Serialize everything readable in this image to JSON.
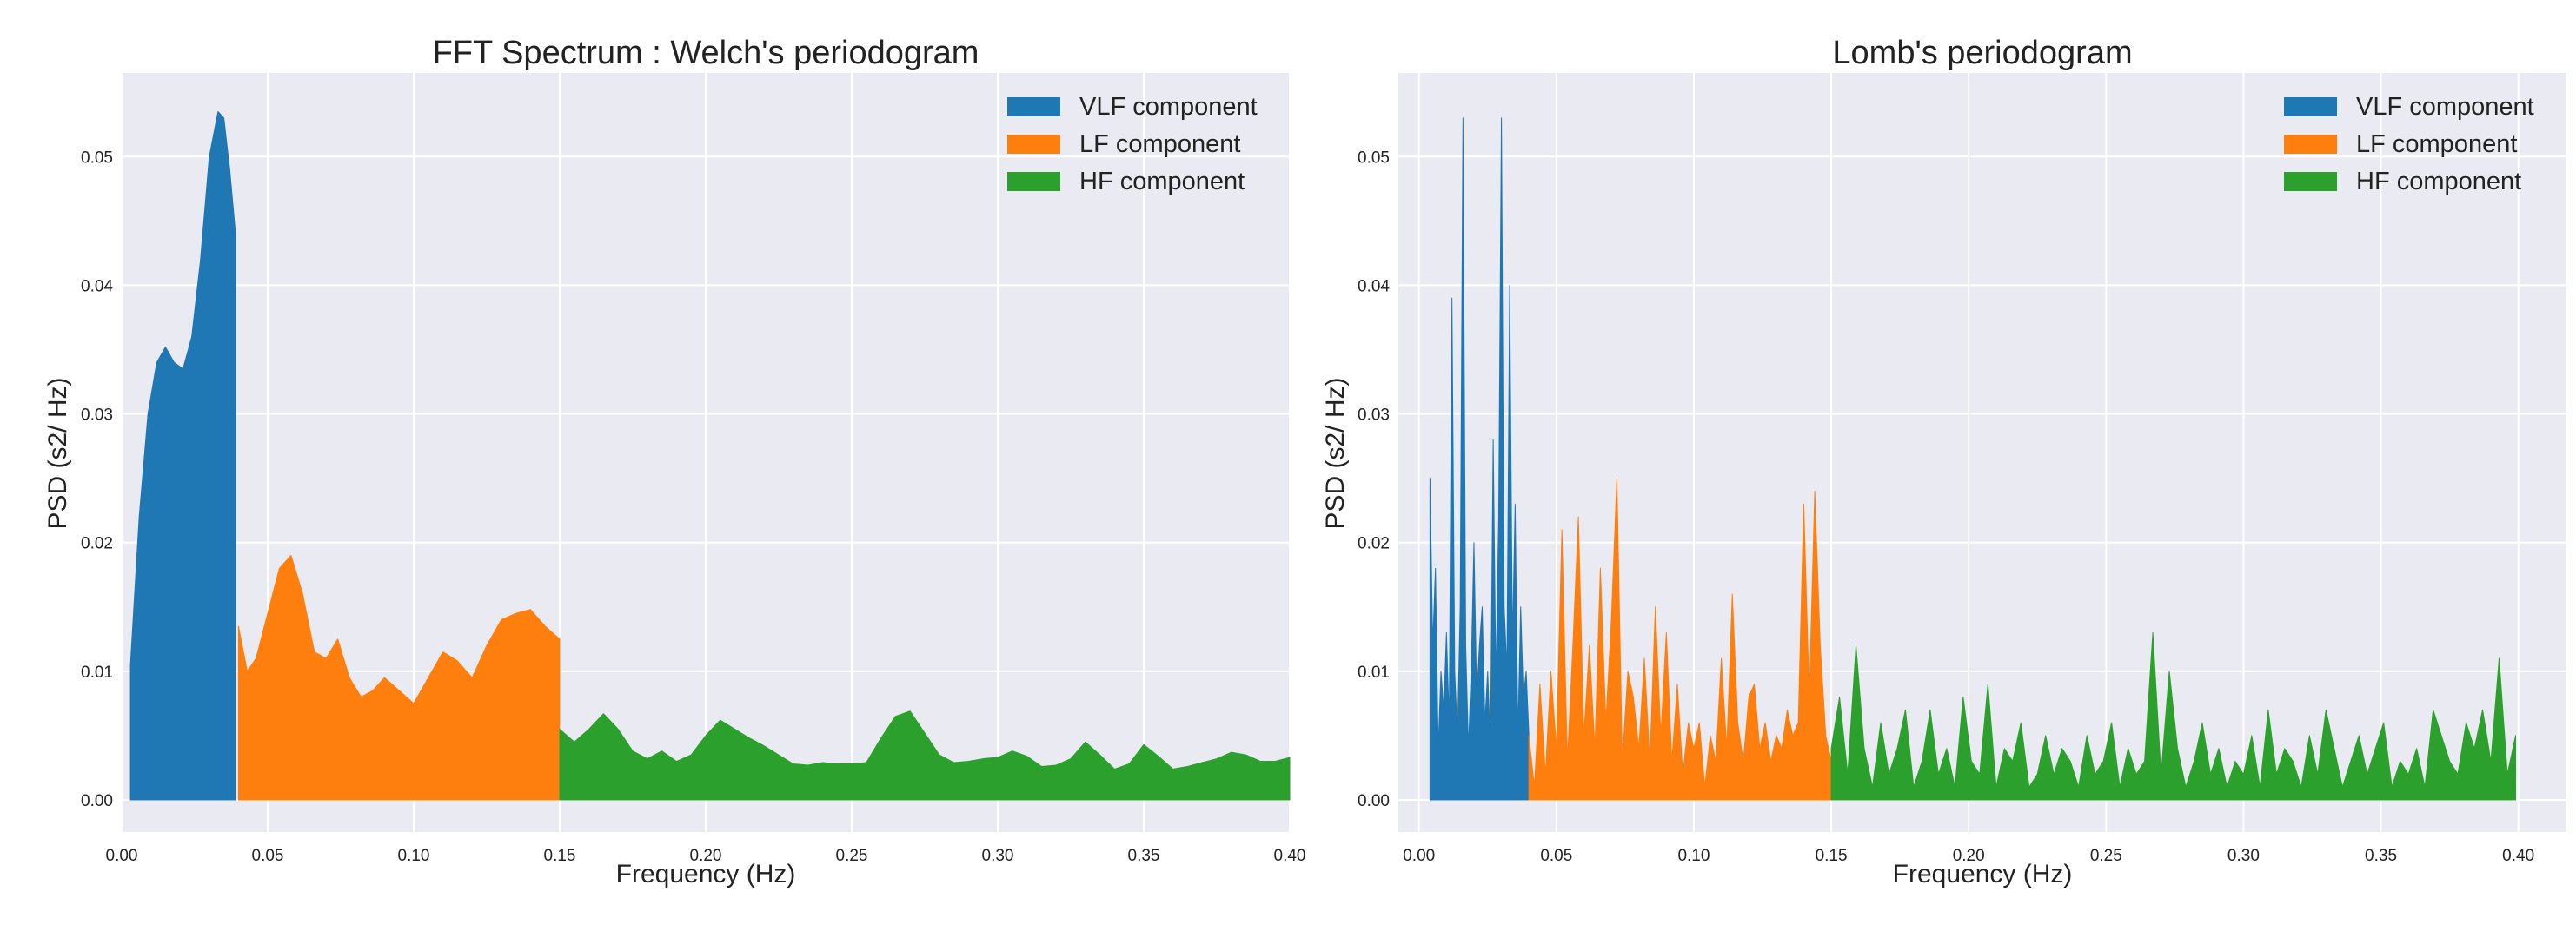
{
  "chart_data": [
    {
      "type": "area",
      "title": "FFT Spectrum : Welch's periodogram",
      "xlabel": "Frequency (Hz)",
      "ylabel": "PSD (s2/ Hz)",
      "xlim": [
        0.0,
        0.4
      ],
      "ylim": [
        -0.0025,
        0.0565
      ],
      "xticks": [
        "0.00",
        "0.05",
        "0.10",
        "0.15",
        "0.20",
        "0.25",
        "0.30",
        "0.35",
        "0.40"
      ],
      "yticks": [
        "0.00",
        "0.01",
        "0.02",
        "0.03",
        "0.04",
        "0.05"
      ],
      "grid": true,
      "legend_position": "top-right",
      "series": [
        {
          "name": "VLF component",
          "color": "#1f77b4",
          "x": [
            0.003,
            0.006,
            0.009,
            0.012,
            0.015,
            0.018,
            0.021,
            0.024,
            0.027,
            0.03,
            0.033,
            0.035,
            0.037,
            0.039
          ],
          "y": [
            0.0105,
            0.022,
            0.03,
            0.034,
            0.0352,
            0.034,
            0.0335,
            0.036,
            0.042,
            0.05,
            0.0535,
            0.053,
            0.049,
            0.044
          ]
        },
        {
          "name": "LF component",
          "color": "#ff7f0e",
          "x": [
            0.04,
            0.043,
            0.046,
            0.05,
            0.054,
            0.058,
            0.062,
            0.066,
            0.07,
            0.074,
            0.078,
            0.082,
            0.086,
            0.09,
            0.095,
            0.1,
            0.105,
            0.11,
            0.115,
            0.12,
            0.125,
            0.13,
            0.135,
            0.14,
            0.145,
            0.15
          ],
          "y": [
            0.0135,
            0.01,
            0.011,
            0.0145,
            0.018,
            0.019,
            0.016,
            0.0115,
            0.011,
            0.0125,
            0.0095,
            0.008,
            0.0085,
            0.0095,
            0.0085,
            0.0075,
            0.0095,
            0.0115,
            0.0108,
            0.0095,
            0.012,
            0.014,
            0.0145,
            0.0148,
            0.0135,
            0.0125
          ]
        },
        {
          "name": "HF component",
          "color": "#2ca02c",
          "x": [
            0.15,
            0.155,
            0.16,
            0.165,
            0.17,
            0.175,
            0.18,
            0.185,
            0.19,
            0.195,
            0.2,
            0.205,
            0.21,
            0.215,
            0.22,
            0.225,
            0.23,
            0.235,
            0.24,
            0.245,
            0.25,
            0.255,
            0.26,
            0.265,
            0.27,
            0.275,
            0.28,
            0.285,
            0.29,
            0.295,
            0.3,
            0.305,
            0.31,
            0.315,
            0.32,
            0.325,
            0.33,
            0.335,
            0.34,
            0.345,
            0.35,
            0.355,
            0.36,
            0.365,
            0.37,
            0.375,
            0.38,
            0.385,
            0.39,
            0.395,
            0.4
          ],
          "y": [
            0.0055,
            0.0045,
            0.0055,
            0.0067,
            0.0055,
            0.0038,
            0.0032,
            0.0038,
            0.003,
            0.0035,
            0.005,
            0.0062,
            0.0055,
            0.0048,
            0.0042,
            0.0035,
            0.0028,
            0.0027,
            0.0029,
            0.0028,
            0.0028,
            0.0029,
            0.0048,
            0.0065,
            0.0069,
            0.0052,
            0.0035,
            0.0029,
            0.003,
            0.0032,
            0.0033,
            0.0038,
            0.0034,
            0.0026,
            0.0027,
            0.0032,
            0.0045,
            0.0035,
            0.0024,
            0.0028,
            0.0043,
            0.0034,
            0.0024,
            0.0026,
            0.0029,
            0.0032,
            0.0037,
            0.0035,
            0.003,
            0.003,
            0.0033
          ]
        }
      ]
    },
    {
      "type": "area",
      "title": "Lomb's periodogram",
      "xlabel": "Frequency (Hz)",
      "ylabel": "PSD (s2/ Hz)",
      "xlim": [
        -0.0075,
        0.4175
      ],
      "ylim": [
        -0.0025,
        0.0565
      ],
      "xticks": [
        "0.00",
        "0.05",
        "0.10",
        "0.15",
        "0.20",
        "0.25",
        "0.30",
        "0.35",
        "0.40"
      ],
      "yticks": [
        "0.00",
        "0.01",
        "0.02",
        "0.03",
        "0.04",
        "0.05"
      ],
      "grid": true,
      "legend_position": "top-right",
      "series": [
        {
          "name": "VLF component",
          "color": "#1f77b4",
          "x": [
            0.004,
            0.005,
            0.006,
            0.007,
            0.008,
            0.009,
            0.01,
            0.011,
            0.012,
            0.013,
            0.014,
            0.015,
            0.016,
            0.017,
            0.018,
            0.019,
            0.02,
            0.021,
            0.022,
            0.023,
            0.024,
            0.025,
            0.026,
            0.027,
            0.028,
            0.029,
            0.03,
            0.031,
            0.032,
            0.033,
            0.034,
            0.035,
            0.036,
            0.037,
            0.038,
            0.039,
            0.04
          ],
          "y": [
            0.025,
            0.012,
            0.018,
            0.004,
            0.01,
            0.007,
            0.013,
            0.006,
            0.039,
            0.01,
            0.005,
            0.015,
            0.053,
            0.012,
            0.004,
            0.01,
            0.02,
            0.008,
            0.012,
            0.015,
            0.006,
            0.01,
            0.004,
            0.028,
            0.009,
            0.022,
            0.053,
            0.015,
            0.01,
            0.04,
            0.012,
            0.023,
            0.005,
            0.015,
            0.008,
            0.01,
            0.005
          ]
        },
        {
          "name": "LF component",
          "color": "#ff7f0e",
          "x": [
            0.04,
            0.042,
            0.044,
            0.046,
            0.048,
            0.05,
            0.052,
            0.054,
            0.056,
            0.058,
            0.06,
            0.062,
            0.064,
            0.066,
            0.068,
            0.07,
            0.072,
            0.074,
            0.076,
            0.078,
            0.08,
            0.082,
            0.084,
            0.086,
            0.088,
            0.09,
            0.092,
            0.094,
            0.096,
            0.098,
            0.1,
            0.102,
            0.104,
            0.106,
            0.108,
            0.11,
            0.112,
            0.114,
            0.116,
            0.118,
            0.12,
            0.122,
            0.124,
            0.126,
            0.128,
            0.13,
            0.132,
            0.134,
            0.136,
            0.138,
            0.14,
            0.142,
            0.144,
            0.146,
            0.148,
            0.15
          ],
          "y": [
            0.005,
            0.001,
            0.009,
            0.002,
            0.01,
            0.004,
            0.021,
            0.003,
            0.012,
            0.022,
            0.005,
            0.012,
            0.004,
            0.018,
            0.006,
            0.014,
            0.025,
            0.003,
            0.01,
            0.008,
            0.004,
            0.011,
            0.003,
            0.015,
            0.005,
            0.013,
            0.003,
            0.009,
            0.002,
            0.006,
            0.004,
            0.006,
            0.001,
            0.005,
            0.003,
            0.011,
            0.004,
            0.016,
            0.006,
            0.003,
            0.008,
            0.009,
            0.004,
            0.006,
            0.003,
            0.005,
            0.004,
            0.007,
            0.005,
            0.006,
            0.023,
            0.008,
            0.024,
            0.012,
            0.005,
            0.003
          ]
        },
        {
          "name": "HF component",
          "color": "#2ca02c",
          "x": [
            0.15,
            0.153,
            0.156,
            0.159,
            0.162,
            0.165,
            0.168,
            0.171,
            0.174,
            0.177,
            0.18,
            0.183,
            0.186,
            0.189,
            0.192,
            0.195,
            0.198,
            0.201,
            0.204,
            0.207,
            0.21,
            0.213,
            0.216,
            0.219,
            0.222,
            0.225,
            0.228,
            0.231,
            0.234,
            0.237,
            0.24,
            0.243,
            0.246,
            0.249,
            0.252,
            0.255,
            0.258,
            0.261,
            0.264,
            0.267,
            0.27,
            0.273,
            0.276,
            0.279,
            0.282,
            0.285,
            0.288,
            0.291,
            0.294,
            0.297,
            0.3,
            0.303,
            0.306,
            0.309,
            0.312,
            0.315,
            0.318,
            0.321,
            0.324,
            0.327,
            0.33,
            0.333,
            0.336,
            0.339,
            0.342,
            0.345,
            0.348,
            0.351,
            0.354,
            0.357,
            0.36,
            0.363,
            0.366,
            0.369,
            0.372,
            0.375,
            0.378,
            0.381,
            0.384,
            0.387,
            0.39,
            0.393,
            0.396,
            0.399
          ],
          "y": [
            0.004,
            0.008,
            0.002,
            0.012,
            0.004,
            0.001,
            0.006,
            0.002,
            0.004,
            0.007,
            0.001,
            0.003,
            0.007,
            0.002,
            0.004,
            0.001,
            0.008,
            0.003,
            0.002,
            0.009,
            0.001,
            0.004,
            0.003,
            0.006,
            0.001,
            0.002,
            0.005,
            0.002,
            0.004,
            0.003,
            0.001,
            0.005,
            0.002,
            0.003,
            0.006,
            0.001,
            0.004,
            0.002,
            0.003,
            0.013,
            0.002,
            0.01,
            0.004,
            0.001,
            0.003,
            0.006,
            0.002,
            0.004,
            0.001,
            0.003,
            0.002,
            0.005,
            0.001,
            0.007,
            0.002,
            0.004,
            0.003,
            0.001,
            0.005,
            0.002,
            0.007,
            0.004,
            0.001,
            0.003,
            0.005,
            0.002,
            0.004,
            0.006,
            0.001,
            0.003,
            0.002,
            0.004,
            0.001,
            0.007,
            0.005,
            0.003,
            0.002,
            0.006,
            0.004,
            0.007,
            0.003,
            0.011,
            0.002,
            0.005
          ]
        }
      ]
    }
  ]
}
